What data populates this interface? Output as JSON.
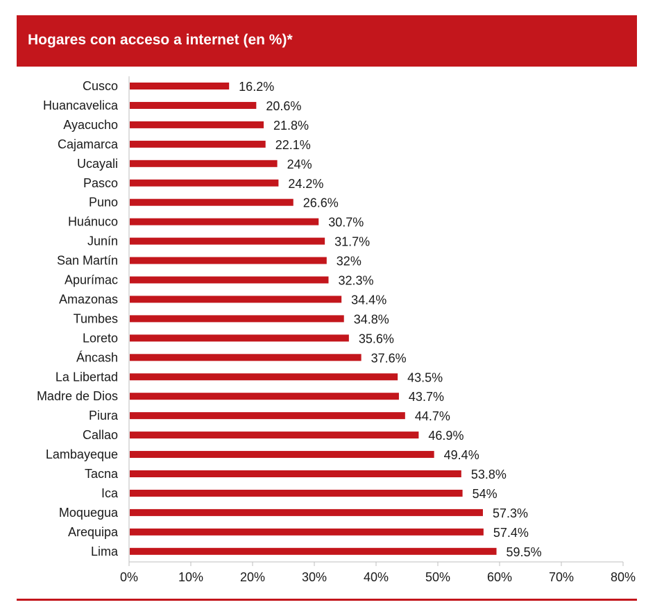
{
  "header": {
    "title": "Hogares con acceso a internet (en %)*"
  },
  "colors": {
    "accent": "#c3161c",
    "bar": "#c3161c",
    "axis": "#bfbfbf",
    "text": "#1a1a1a"
  },
  "chart_data": {
    "type": "bar",
    "orientation": "horizontal",
    "title": "Hogares con acceso a internet (en %)*",
    "xlabel": "",
    "ylabel": "",
    "xlim": [
      0,
      80
    ],
    "xticks": [
      "0%",
      "10%",
      "20%",
      "30%",
      "40%",
      "50%",
      "60%",
      "70%",
      "80%"
    ],
    "grid": false,
    "categories": [
      "Cusco",
      "Huancavelica",
      "Ayacucho",
      "Cajamarca",
      "Ucayali",
      "Pasco",
      "Puno",
      "Huánuco",
      "Junín",
      "San Martín",
      "Apurímac",
      "Amazonas",
      "Tumbes",
      "Loreto",
      "Áncash",
      "La Libertad",
      "Madre de Dios",
      "Piura",
      "Callao",
      "Lambayeque",
      "Tacna",
      "Ica",
      "Moquegua",
      "Arequipa",
      "Lima"
    ],
    "values": [
      16.2,
      20.6,
      21.8,
      22.1,
      24,
      24.2,
      26.6,
      30.7,
      31.7,
      32,
      32.3,
      34.4,
      34.8,
      35.6,
      37.6,
      43.5,
      43.7,
      44.7,
      46.9,
      49.4,
      53.8,
      54,
      57.3,
      57.4,
      59.5
    ],
    "data_labels": [
      "16.2%",
      "20.6%",
      "21.8%",
      "22.1%",
      "24%",
      "24.2%",
      "26.6%",
      "30.7%",
      "31.7%",
      "32%",
      "32.3%",
      "34.4%",
      "34.8%",
      "35.6%",
      "37.6%",
      "43.5%",
      "43.7%",
      "44.7%",
      "46.9%",
      "49.4%",
      "53.8%",
      "54%",
      "57.3%",
      "57.4%",
      "59.5%"
    ]
  }
}
